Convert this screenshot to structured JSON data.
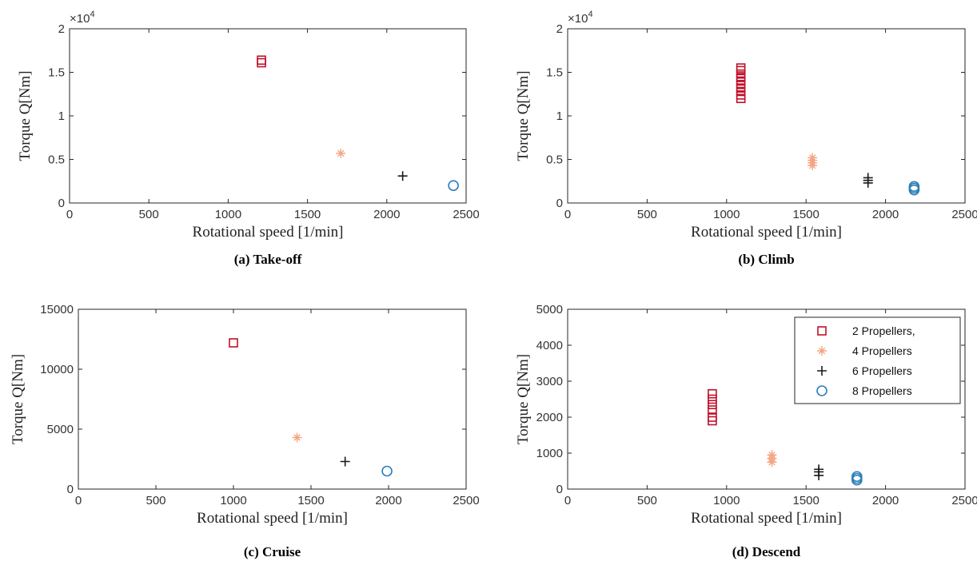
{
  "chart_data": [
    {
      "type": "scatter",
      "caption": "(a) Take-off",
      "xlabel": "Rotational speed [1/min]",
      "ylabel": "Torque Q[Nm]",
      "xlim": [
        0,
        2500
      ],
      "ylim": [
        0,
        20000
      ],
      "xticks": [
        0,
        500,
        1000,
        1500,
        2000,
        2500
      ],
      "yticks": [
        0,
        5000,
        10000,
        15000,
        20000
      ],
      "ytick_labels": [
        "0",
        "0.5",
        "1",
        "1.5",
        "2"
      ],
      "y_exponent": "×10",
      "y_exponent_power": "4",
      "grid": false,
      "series": [
        {
          "name": "2 Propellers,",
          "marker": "square",
          "color": "#c0102a",
          "points": [
            [
              1210,
              16100
            ],
            [
              1210,
              16400
            ]
          ]
        },
        {
          "name": "4 Propellers",
          "marker": "asterisk",
          "color": "#f4a582",
          "points": [
            [
              1710,
              5700
            ]
          ]
        },
        {
          "name": "6 Propellers",
          "marker": "plus",
          "color": "#1a1a1a",
          "points": [
            [
              2100,
              3100
            ]
          ]
        },
        {
          "name": "8 Propellers",
          "marker": "circle",
          "color": "#2b7fb8",
          "points": [
            [
              2420,
              2000
            ]
          ]
        }
      ]
    },
    {
      "type": "scatter",
      "caption": "(b) Climb",
      "xlabel": "Rotational speed [1/min]",
      "ylabel": "Torque Q[Nm]",
      "xlim": [
        0,
        2500
      ],
      "ylim": [
        0,
        20000
      ],
      "xticks": [
        0,
        500,
        1000,
        1500,
        2000,
        2500
      ],
      "yticks": [
        0,
        5000,
        10000,
        15000,
        20000
      ],
      "ytick_labels": [
        "0",
        "0.5",
        "1",
        "1.5",
        "2"
      ],
      "y_exponent": "×10",
      "y_exponent_power": "4",
      "grid": false,
      "series": [
        {
          "name": "2 Propellers,",
          "marker": "square",
          "color": "#c0102a",
          "points": [
            [
              1090,
              12000
            ],
            [
              1090,
              12400
            ],
            [
              1090,
              12800
            ],
            [
              1090,
              13200
            ],
            [
              1090,
              13600
            ],
            [
              1090,
              14000
            ],
            [
              1090,
              14400
            ],
            [
              1090,
              14800
            ],
            [
              1090,
              15200
            ],
            [
              1090,
              15500
            ]
          ]
        },
        {
          "name": "4 Propellers",
          "marker": "asterisk",
          "color": "#f4a582",
          "points": [
            [
              1540,
              4300
            ],
            [
              1540,
              4600
            ],
            [
              1540,
              4900
            ],
            [
              1540,
              5200
            ]
          ]
        },
        {
          "name": "6 Propellers",
          "marker": "plus",
          "color": "#1a1a1a",
          "points": [
            [
              1890,
              2300
            ],
            [
              1890,
              2600
            ],
            [
              1890,
              2900
            ]
          ]
        },
        {
          "name": "8 Propellers",
          "marker": "circle",
          "color": "#2b7fb8",
          "points": [
            [
              2180,
              1500
            ],
            [
              2180,
              1700
            ],
            [
              2180,
              1900
            ]
          ]
        }
      ]
    },
    {
      "type": "scatter",
      "caption": "(c) Cruise",
      "xlabel": "Rotational speed [1/min]",
      "ylabel": "Torque Q[Nm]",
      "xlim": [
        0,
        2500
      ],
      "ylim": [
        0,
        15000
      ],
      "xticks": [
        0,
        500,
        1000,
        1500,
        2000,
        2500
      ],
      "yticks": [
        0,
        5000,
        10000,
        15000
      ],
      "ytick_labels": [
        "0",
        "5000",
        "10000",
        "15000"
      ],
      "y_exponent": "",
      "y_exponent_power": "",
      "grid": false,
      "series": [
        {
          "name": "2 Propellers,",
          "marker": "square",
          "color": "#c0102a",
          "points": [
            [
              1000,
              12200
            ]
          ]
        },
        {
          "name": "4 Propellers",
          "marker": "asterisk",
          "color": "#f4a582",
          "points": [
            [
              1410,
              4300
            ]
          ]
        },
        {
          "name": "6 Propellers",
          "marker": "plus",
          "color": "#1a1a1a",
          "points": [
            [
              1720,
              2300
            ]
          ]
        },
        {
          "name": "8 Propellers",
          "marker": "circle",
          "color": "#2b7fb8",
          "points": [
            [
              1990,
              1500
            ]
          ]
        }
      ]
    },
    {
      "type": "scatter",
      "caption": "(d) Descend",
      "xlabel": "Rotational speed [1/min]",
      "ylabel": "Torque Q[Nm]",
      "xlim": [
        0,
        2500
      ],
      "ylim": [
        0,
        5000
      ],
      "xticks": [
        0,
        500,
        1000,
        1500,
        2000,
        2500
      ],
      "yticks": [
        0,
        1000,
        2000,
        3000,
        4000,
        5000
      ],
      "ytick_labels": [
        "0",
        "1000",
        "2000",
        "3000",
        "4000",
        "5000"
      ],
      "y_exponent": "",
      "y_exponent_power": "",
      "grid": false,
      "legend": "top-right",
      "series": [
        {
          "name": "2 Propellers,",
          "marker": "square",
          "color": "#c0102a",
          "points": [
            [
              910,
              1900
            ],
            [
              910,
              2000
            ],
            [
              910,
              2200
            ],
            [
              910,
              2350
            ],
            [
              910,
              2500
            ],
            [
              910,
              2650
            ]
          ]
        },
        {
          "name": "4 Propellers",
          "marker": "asterisk",
          "color": "#f4a582",
          "points": [
            [
              1285,
              750
            ],
            [
              1285,
              850
            ],
            [
              1285,
              950
            ]
          ]
        },
        {
          "name": "6 Propellers",
          "marker": "plus",
          "color": "#1a1a1a",
          "points": [
            [
              1580,
              380
            ],
            [
              1580,
              480
            ],
            [
              1580,
              550
            ]
          ]
        },
        {
          "name": "8 Propellers",
          "marker": "circle",
          "color": "#2b7fb8",
          "points": [
            [
              1820,
              250
            ],
            [
              1820,
              300
            ],
            [
              1820,
              350
            ]
          ]
        }
      ]
    }
  ]
}
